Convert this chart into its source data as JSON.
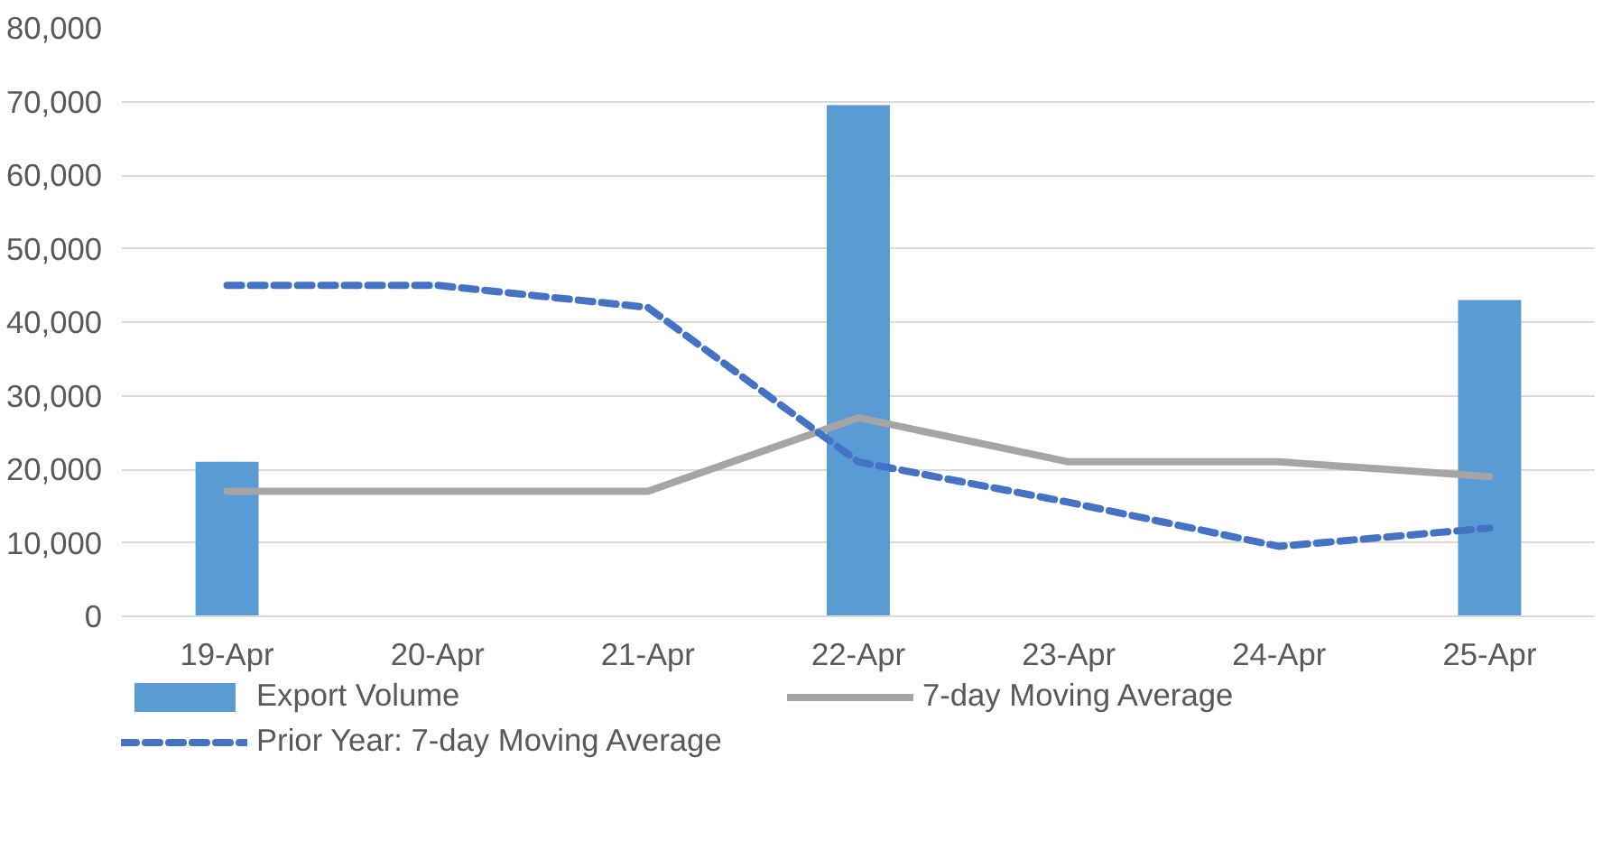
{
  "chart_data": {
    "type": "bar",
    "categories": [
      "19-Apr",
      "20-Apr",
      "21-Apr",
      "22-Apr",
      "23-Apr",
      "24-Apr",
      "25-Apr"
    ],
    "series": [
      {
        "name": "Export Volume",
        "color": "#5b9bd5",
        "values": [
          21000,
          null,
          null,
          69500,
          null,
          null,
          43000
        ]
      },
      {
        "name": "7-day Moving Average",
        "type": "line",
        "color": "#a5a5a5",
        "line_style": "solid",
        "values": [
          17000,
          17000,
          17000,
          27000,
          21000,
          21000,
          19000
        ]
      },
      {
        "name": "Prior Year: 7-day Moving Average",
        "type": "line",
        "color": "#4472c4",
        "line_style": "dashed",
        "values": [
          45000,
          45000,
          42000,
          21000,
          15500,
          9500,
          12000
        ]
      }
    ],
    "ylim": [
      0,
      80000
    ],
    "yticks": [
      {
        "value": 0,
        "label": "0"
      },
      {
        "value": 10000,
        "label": "10,000"
      },
      {
        "value": 20000,
        "label": "20,000"
      },
      {
        "value": 30000,
        "label": "30,000"
      },
      {
        "value": 40000,
        "label": "40,000"
      },
      {
        "value": 50000,
        "label": "50,000"
      },
      {
        "value": 60000,
        "label": "60,000"
      },
      {
        "value": 70000,
        "label": "70,000"
      },
      {
        "value": 80000,
        "label": "80,000"
      }
    ],
    "grid": "y",
    "legend": "bottom"
  }
}
